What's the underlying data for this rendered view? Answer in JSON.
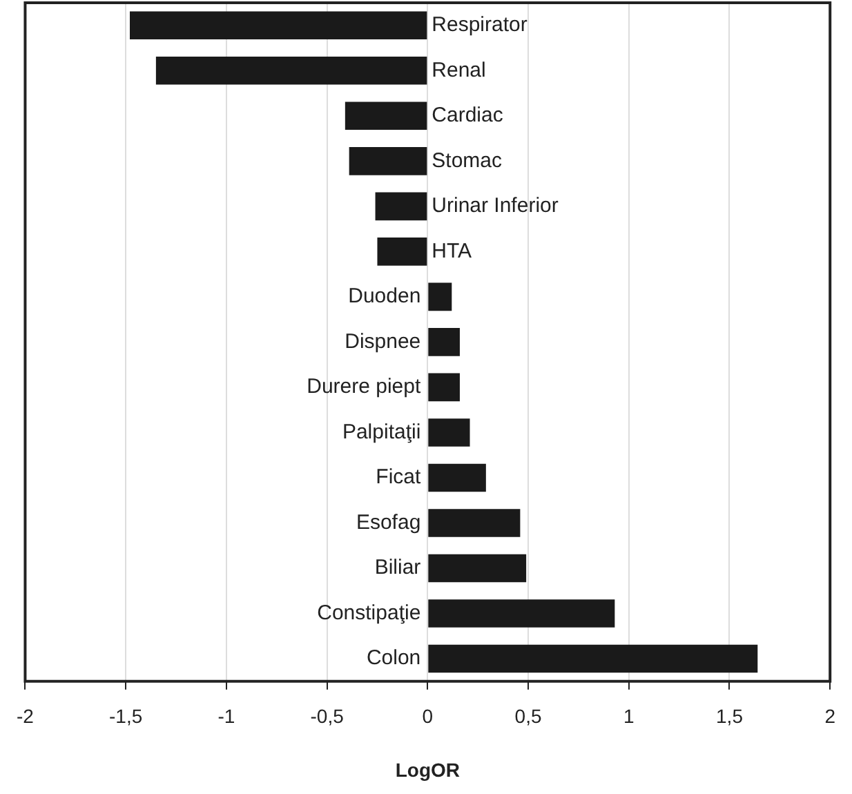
{
  "chart_data": {
    "type": "bar",
    "orientation": "horizontal",
    "xlabel": "LogOR",
    "categories": [
      "Respirator",
      "Renal",
      "Cardiac",
      "Stomac",
      "Urinar Inferior",
      "HTA",
      "Duoden",
      "Dispnee",
      "Durere piept",
      "Palpitaţii",
      "Ficat",
      "Esofag",
      "Biliar",
      "Constipaţie",
      "Colon"
    ],
    "values": [
      -1.48,
      -1.35,
      -0.41,
      -0.39,
      -0.26,
      -0.25,
      0.12,
      0.16,
      0.16,
      0.21,
      0.29,
      0.46,
      0.49,
      0.93,
      1.64
    ],
    "color": "#1a1a1a",
    "xlim": [
      -2,
      2
    ],
    "xticks": [
      -2,
      {
        "value": -1.5,
        "label": "-1,5"
      },
      -1,
      {
        "value": -0.5,
        "label": "-0,5"
      },
      0,
      {
        "value": 0.5,
        "label": "0,5"
      },
      1,
      {
        "value": 1.5,
        "label": "1,5"
      },
      2
    ],
    "grid": "x",
    "legend": false
  }
}
